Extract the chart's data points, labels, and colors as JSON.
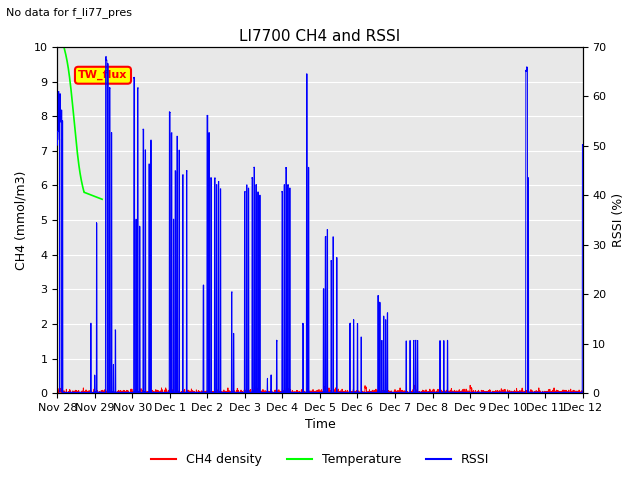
{
  "title": "LI7700 CH4 and RSSI",
  "subtitle": "No data for f_li77_pres",
  "xlabel": "Time",
  "ylabel_left": "CH4 (mmol/m3)",
  "ylabel_right": "RSSI (%)",
  "annotation": "TW_flux",
  "ylim_left": [
    0.0,
    10.0
  ],
  "ylim_right": [
    0,
    70
  ],
  "yticks_left": [
    0.0,
    1.0,
    2.0,
    3.0,
    4.0,
    5.0,
    6.0,
    7.0,
    8.0,
    9.0,
    10.0
  ],
  "xtick_labels": [
    "Nov 28",
    "Nov 29",
    "Nov 30",
    "Dec 1",
    "Dec 2",
    "Dec 3",
    "Dec 4",
    "Dec 5",
    "Dec 6",
    "Dec 7",
    "Dec 8",
    "Dec 9",
    "Dec 10",
    "Dec 11",
    "Dec 12"
  ],
  "bg_color": "#e8e8e8",
  "legend_entries": [
    "CH4 density",
    "Temperature",
    "RSSI"
  ],
  "legend_colors": [
    "red",
    "lime",
    "blue"
  ],
  "ch4_color": "red",
  "temp_color": "lime",
  "rssi_color": "blue",
  "annotation_bg": "yellow",
  "annotation_text_color": "red",
  "annotation_border_color": "red",
  "figsize": [
    6.4,
    4.8
  ],
  "dpi": 100
}
